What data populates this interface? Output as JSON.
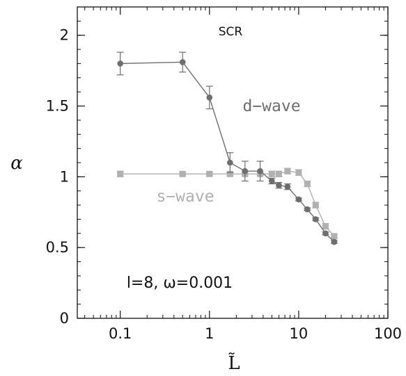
{
  "chart_data": {
    "type": "line",
    "title": "SCR",
    "xlabel": "L̃",
    "ylabel": "α",
    "xscale": "log",
    "xlim": [
      0.033,
      100
    ],
    "ylim": [
      0,
      2.2
    ],
    "xticks": [
      {
        "value": 0.1,
        "label": "0.1"
      },
      {
        "value": 1,
        "label": "1"
      },
      {
        "value": 10,
        "label": "10"
      },
      {
        "value": 100,
        "label": "100"
      }
    ],
    "yticks": [
      {
        "value": 0,
        "label": "0"
      },
      {
        "value": 0.5,
        "label": "0.5"
      },
      {
        "value": 1,
        "label": "1"
      },
      {
        "value": 1.5,
        "label": "1.5"
      },
      {
        "value": 2,
        "label": "2"
      }
    ],
    "annotation": "l=8,  ω=0.001",
    "series": [
      {
        "name": "d−wave",
        "color": "#6e6e6e",
        "marker": "circle",
        "points": [
          {
            "x": 0.1,
            "y": 1.8,
            "err": 0.08
          },
          {
            "x": 0.5,
            "y": 1.81,
            "err": 0.07
          },
          {
            "x": 1.0,
            "y": 1.56,
            "err": 0.08
          },
          {
            "x": 1.7,
            "y": 1.1,
            "err": 0.07
          },
          {
            "x": 2.5,
            "y": 1.04,
            "err": 0.07
          },
          {
            "x": 3.7,
            "y": 1.04,
            "err": 0.07
          },
          {
            "x": 5.0,
            "y": 0.97,
            "err": 0.02
          },
          {
            "x": 6.0,
            "y": 0.94,
            "err": 0.02
          },
          {
            "x": 7.5,
            "y": 0.93,
            "err": 0.02
          },
          {
            "x": 10.0,
            "y": 0.84,
            "err": 0.01
          },
          {
            "x": 12.5,
            "y": 0.77,
            "err": 0.01
          },
          {
            "x": 15.5,
            "y": 0.7,
            "err": 0.01
          },
          {
            "x": 20.0,
            "y": 0.6,
            "err": 0.01
          },
          {
            "x": 25.0,
            "y": 0.54,
            "err": 0.01
          }
        ]
      },
      {
        "name": "s−wave",
        "color": "#b0b0b0",
        "marker": "square",
        "points": [
          {
            "x": 0.1,
            "y": 1.02,
            "err": 0.02
          },
          {
            "x": 0.5,
            "y": 1.02,
            "err": 0.01
          },
          {
            "x": 1.0,
            "y": 1.02,
            "err": 0.01
          },
          {
            "x": 1.7,
            "y": 1.02,
            "err": 0.01
          },
          {
            "x": 2.5,
            "y": 1.02,
            "err": 0.01
          },
          {
            "x": 3.7,
            "y": 1.02,
            "err": 0.01
          },
          {
            "x": 5.0,
            "y": 1.02,
            "err": 0.02
          },
          {
            "x": 6.0,
            "y": 1.02,
            "err": 0.02
          },
          {
            "x": 7.5,
            "y": 1.04,
            "err": 0.02
          },
          {
            "x": 10.0,
            "y": 1.03,
            "err": 0.02
          },
          {
            "x": 12.5,
            "y": 0.95,
            "err": 0.02
          },
          {
            "x": 15.5,
            "y": 0.8,
            "err": 0.02
          },
          {
            "x": 20.0,
            "y": 0.65,
            "err": 0.02
          },
          {
            "x": 25.0,
            "y": 0.58,
            "err": 0.01
          }
        ]
      }
    ]
  }
}
